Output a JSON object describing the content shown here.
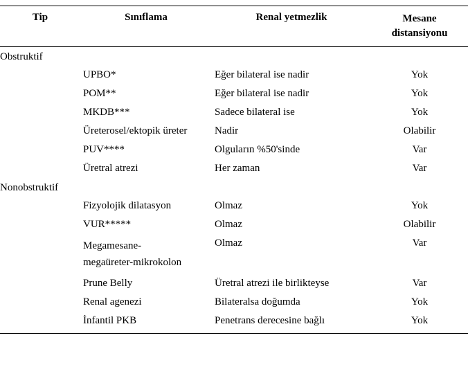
{
  "table": {
    "headers": {
      "tip": "Tip",
      "siniflama": "Sınıflama",
      "renal": "Renal yetmezlik",
      "mesane_line1": "Mesane",
      "mesane_line2": "distansiyonu"
    },
    "sections": [
      {
        "label": "Obstruktif",
        "rows": [
          {
            "siniflama": "UPBO*",
            "renal": "Eğer bilateral ise nadir",
            "mesane": "Yok"
          },
          {
            "siniflama": "POM**",
            "renal": "Eğer bilateral ise nadir",
            "mesane": "Yok"
          },
          {
            "siniflama": "MKDB***",
            "renal": "Sadece bilateral ise",
            "mesane": "Yok"
          },
          {
            "siniflama": "Üreterosel/ektopik üreter",
            "renal": "Nadir",
            "mesane": "Olabilir"
          },
          {
            "siniflama": "PUV****",
            "renal": "Olguların %50'sinde",
            "mesane": "Var"
          },
          {
            "siniflama": "Üretral atrezi",
            "renal": "Her zaman",
            "mesane": "Var"
          }
        ]
      },
      {
        "label": "Nonobstruktif",
        "rows": [
          {
            "siniflama": "Fizyolojik dilatasyon",
            "renal": "Olmaz",
            "mesane": "Yok"
          },
          {
            "siniflama": "VUR*****",
            "renal": "Olmaz",
            "mesane": "Olabilir"
          },
          {
            "siniflama": "Megamesane-",
            "siniflama_line2": "megaüreter-mikrokolon",
            "renal": "Olmaz",
            "mesane": "Var"
          },
          {
            "siniflama": "Prune Belly",
            "renal": "Üretral atrezi ile birlikteyse",
            "mesane": "Var"
          },
          {
            "siniflama": "Renal agenezi",
            "renal": "Bilateralsa doğumda",
            "mesane": "Yok"
          },
          {
            "siniflama": "İnfantil PKB",
            "renal": "Penetrans derecesine bağlı",
            "mesane": "Yok"
          }
        ]
      }
    ]
  },
  "styling": {
    "font_family": "Times New Roman",
    "font_size_pt": 12,
    "header_font_weight": "bold",
    "background_color": "#ffffff",
    "text_color": "#000000",
    "border_color": "#000000",
    "column_widths": {
      "tip": 116,
      "siniflama": 190,
      "renal": 230,
      "mesane": 140
    }
  }
}
